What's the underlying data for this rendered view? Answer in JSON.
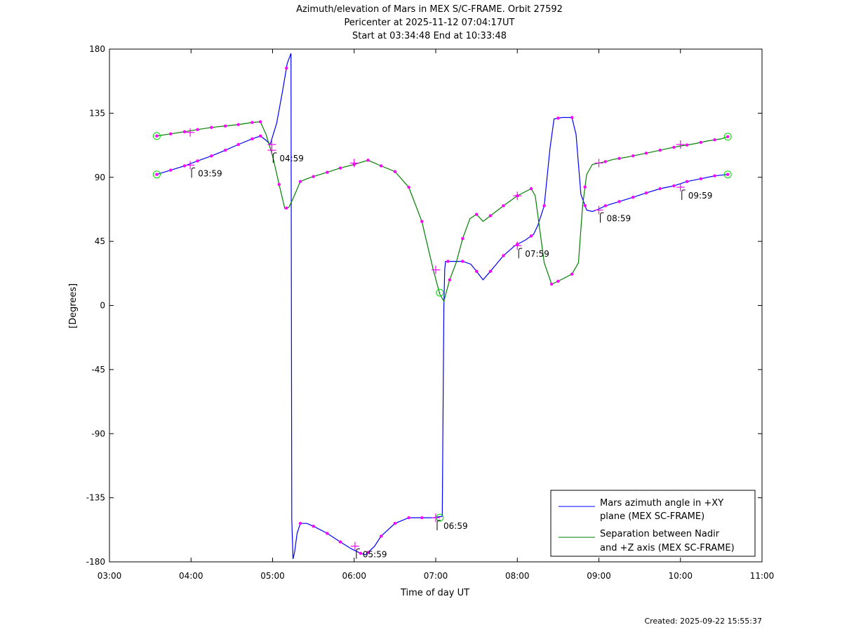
{
  "title_lines": [
    "Azimuth/elevation of Mars in MEX S/C-FRAME.  Orbit 27592",
    "Pericenter at 2025-11-12 07:04:17UT",
    "Start at 03:34:48 End at 10:33:48"
  ],
  "footer": "Created: 2025-09-22 15:55:37",
  "colors": {
    "azimuth": "#0000ff",
    "separation": "#008000",
    "marker": "#ff00ff",
    "endpoint_marker": "#00dd00"
  },
  "chart_data": {
    "type": "line",
    "xlabel": "Time of day UT",
    "ylabel": "[Degrees]",
    "xlim": [
      3.0,
      11.0
    ],
    "ylim": [
      -180,
      180
    ],
    "x_ticks": [
      3,
      4,
      5,
      6,
      7,
      8,
      9,
      10,
      11
    ],
    "x_tick_labels": [
      "03:00",
      "04:00",
      "05:00",
      "06:00",
      "07:00",
      "08:00",
      "09:00",
      "10:00",
      "11:00"
    ],
    "y_ticks": [
      -180,
      -135,
      -90,
      -45,
      0,
      45,
      90,
      135,
      180
    ],
    "y_tick_labels": [
      "-180",
      "-135",
      "-90",
      "-45",
      "0",
      "45",
      "90",
      "135",
      "180"
    ],
    "grid": false,
    "legend_position": "bottom-right",
    "series": [
      {
        "name": "Mars azimuth angle in +XY plane (MEX SC-FRAME)",
        "legend_lines": [
          "Mars azimuth angle in +XY",
          "plane (MEX SC-FRAME)"
        ],
        "color_key": "azimuth",
        "points": [
          [
            3.58,
            92
          ],
          [
            3.75,
            95
          ],
          [
            3.92,
            98
          ],
          [
            4.08,
            101.5
          ],
          [
            4.25,
            105
          ],
          [
            4.42,
            109
          ],
          [
            4.58,
            113
          ],
          [
            4.75,
            117
          ],
          [
            4.85,
            119
          ],
          [
            4.92,
            116
          ],
          [
            4.97,
            113
          ],
          [
            5.05,
            128
          ],
          [
            5.12,
            150
          ],
          [
            5.18,
            170
          ],
          [
            5.225,
            177
          ],
          [
            5.235,
            -150
          ],
          [
            5.25,
            -178
          ],
          [
            5.27,
            -173
          ],
          [
            5.3,
            -160
          ],
          [
            5.34,
            -153
          ],
          [
            5.42,
            -153
          ],
          [
            5.5,
            -155
          ],
          [
            5.67,
            -160
          ],
          [
            5.83,
            -166
          ],
          [
            5.97,
            -171
          ],
          [
            6.08,
            -174
          ],
          [
            6.14,
            -175
          ],
          [
            6.25,
            -169
          ],
          [
            6.33,
            -162
          ],
          [
            6.5,
            -153
          ],
          [
            6.67,
            -149
          ],
          [
            6.83,
            -149
          ],
          [
            6.97,
            -149
          ],
          [
            7.08,
            -148
          ],
          [
            7.1,
            0
          ],
          [
            7.11,
            25
          ],
          [
            7.12,
            31
          ],
          [
            7.2,
            31
          ],
          [
            7.33,
            31
          ],
          [
            7.43,
            29
          ],
          [
            7.5,
            24
          ],
          [
            7.58,
            18
          ],
          [
            7.67,
            24
          ],
          [
            7.83,
            35
          ],
          [
            7.97,
            42
          ],
          [
            8.1,
            46
          ],
          [
            8.2,
            50
          ],
          [
            8.25,
            56
          ],
          [
            8.33,
            70
          ],
          [
            8.4,
            110
          ],
          [
            8.45,
            131
          ],
          [
            8.55,
            132
          ],
          [
            8.67,
            132
          ],
          [
            8.72,
            120
          ],
          [
            8.78,
            78
          ],
          [
            8.85,
            67
          ],
          [
            8.92,
            66
          ],
          [
            8.97,
            67
          ],
          [
            9.08,
            70
          ],
          [
            9.25,
            73
          ],
          [
            9.42,
            76
          ],
          [
            9.58,
            79
          ],
          [
            9.75,
            82
          ],
          [
            9.92,
            84
          ],
          [
            10.08,
            87
          ],
          [
            10.25,
            89
          ],
          [
            10.42,
            91
          ],
          [
            10.58,
            92
          ]
        ],
        "dots": [
          3.58,
          3.75,
          3.92,
          4.08,
          4.25,
          4.42,
          4.58,
          4.75,
          4.85,
          5.17,
          5.34,
          5.5,
          5.67,
          5.83,
          6.08,
          6.17,
          6.33,
          6.5,
          6.67,
          6.83,
          7.15,
          7.33,
          7.5,
          7.67,
          7.83,
          8.0,
          8.17,
          8.33,
          8.5,
          8.67,
          8.83,
          9.08,
          9.25,
          9.42,
          9.58,
          9.75,
          9.92,
          10.08,
          10.25,
          10.42,
          10.58
        ],
        "crosses": [
          [
            3.99,
            98.5
          ],
          [
            4.99,
            109
          ],
          [
            6.01,
            -169
          ],
          [
            7.0,
            -149
          ],
          [
            8.0,
            42
          ],
          [
            9.0,
            67
          ],
          [
            10.0,
            83
          ]
        ]
      },
      {
        "name": "Separation between Nadir and +Z axis (MEX SC-FRAME)",
        "legend_lines": [
          "Separation between Nadir",
          "and +Z axis (MEX SC-FRAME)"
        ],
        "color_key": "separation",
        "points": [
          [
            3.58,
            119
          ],
          [
            3.75,
            120.5
          ],
          [
            3.92,
            122
          ],
          [
            4.08,
            123.5
          ],
          [
            4.25,
            125
          ],
          [
            4.42,
            126
          ],
          [
            4.58,
            127
          ],
          [
            4.75,
            128.5
          ],
          [
            4.85,
            129
          ],
          [
            4.92,
            120
          ],
          [
            5.0,
            105
          ],
          [
            5.08,
            85
          ],
          [
            5.15,
            68
          ],
          [
            5.2,
            69
          ],
          [
            5.25,
            75
          ],
          [
            5.34,
            87
          ],
          [
            5.42,
            89
          ],
          [
            5.5,
            90.5
          ],
          [
            5.67,
            93.5
          ],
          [
            5.83,
            96.5
          ],
          [
            6.0,
            99
          ],
          [
            6.17,
            102
          ],
          [
            6.33,
            98
          ],
          [
            6.5,
            94
          ],
          [
            6.67,
            83
          ],
          [
            6.83,
            59
          ],
          [
            6.97,
            25
          ],
          [
            7.05,
            8
          ],
          [
            7.1,
            3
          ],
          [
            7.17,
            18
          ],
          [
            7.25,
            30
          ],
          [
            7.33,
            47
          ],
          [
            7.42,
            61
          ],
          [
            7.5,
            64
          ],
          [
            7.58,
            59
          ],
          [
            7.67,
            63
          ],
          [
            7.83,
            70
          ],
          [
            8.0,
            77
          ],
          [
            8.17,
            82
          ],
          [
            8.22,
            77
          ],
          [
            8.33,
            30
          ],
          [
            8.42,
            15
          ],
          [
            8.5,
            17
          ],
          [
            8.67,
            22
          ],
          [
            8.75,
            30
          ],
          [
            8.8,
            70
          ],
          [
            8.85,
            92
          ],
          [
            8.92,
            99
          ],
          [
            9.0,
            100
          ],
          [
            9.08,
            101
          ],
          [
            9.17,
            102.5
          ],
          [
            9.33,
            104
          ],
          [
            9.5,
            106
          ],
          [
            9.67,
            108
          ],
          [
            9.83,
            110
          ],
          [
            10.0,
            112
          ],
          [
            10.17,
            113.5
          ],
          [
            10.33,
            115.5
          ],
          [
            10.5,
            117
          ],
          [
            10.58,
            118.5
          ]
        ],
        "dots": [
          3.58,
          3.75,
          3.92,
          4.08,
          4.25,
          4.42,
          4.58,
          4.75,
          4.85,
          5.08,
          5.17,
          5.34,
          5.5,
          5.67,
          5.83,
          6.0,
          6.17,
          6.33,
          6.5,
          6.67,
          6.83,
          7.17,
          7.33,
          7.5,
          7.67,
          7.83,
          8.0,
          8.17,
          8.42,
          8.5,
          8.67,
          8.83,
          9.08,
          9.25,
          9.42,
          9.58,
          9.75,
          9.92,
          10.08,
          10.25,
          10.42,
          10.58
        ],
        "crosses": [
          [
            3.99,
            121.5
          ],
          [
            4.99,
            113
          ],
          [
            6.0,
            100
          ],
          [
            7.0,
            25
          ],
          [
            8.0,
            77
          ],
          [
            9.0,
            100
          ],
          [
            10.0,
            113
          ]
        ]
      }
    ],
    "endpoint_circles": [
      [
        3.58,
        92
      ],
      [
        3.58,
        119
      ],
      [
        10.58,
        92
      ],
      [
        10.58,
        118.5
      ],
      [
        7.05,
        9
      ],
      [
        7.05,
        -149
      ]
    ],
    "annotations": [
      {
        "label": "03:59",
        "x": 3.99,
        "y": 98.5
      },
      {
        "label": "04:59",
        "x": 4.99,
        "y": 109
      },
      {
        "label": "05:59",
        "x": 6.01,
        "y": -169
      },
      {
        "label": "06:59",
        "x": 7.0,
        "y": -149
      },
      {
        "label": "07:59",
        "x": 8.0,
        "y": 42
      },
      {
        "label": "08:59",
        "x": 9.0,
        "y": 67
      },
      {
        "label": "09:59",
        "x": 10.0,
        "y": 83
      }
    ]
  }
}
